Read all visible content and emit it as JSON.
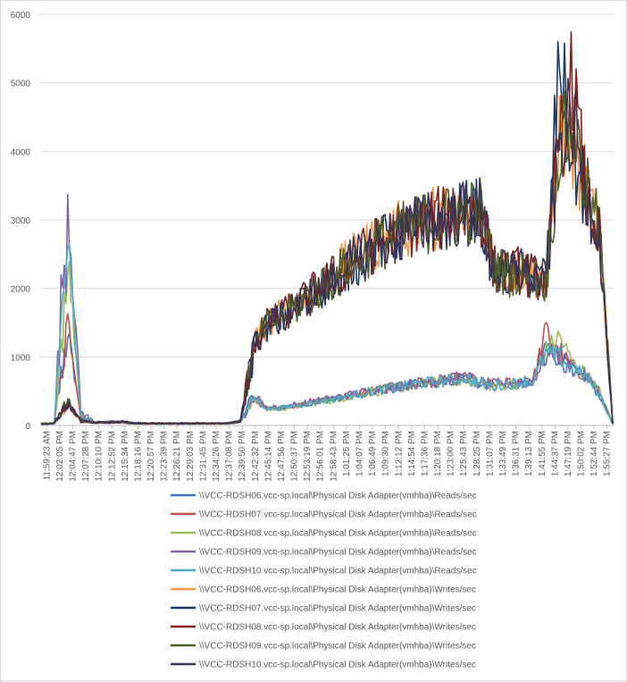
{
  "chart_data": {
    "type": "line",
    "title": "",
    "xlabel": "",
    "ylabel": "",
    "ylim": [
      0,
      6000
    ],
    "y_ticks": [
      0,
      1000,
      2000,
      3000,
      4000,
      5000,
      6000
    ],
    "grid": "horizontal",
    "legend_position": "bottom",
    "x_tick_labels": [
      "11:59:23 AM",
      "12:02:05 PM",
      "12:04:47 PM",
      "12:07:28 PM",
      "12:10:10 PM",
      "12:12:52 PM",
      "12:15:34 PM",
      "12:18:16 PM",
      "12:20:57 PM",
      "12:23:39 PM",
      "12:26:21 PM",
      "12:29:03 PM",
      "12:31:45 PM",
      "12:34:26 PM",
      "12:37:08 PM",
      "12:39:50 PM",
      "12:42:32 PM",
      "12:45:14 PM",
      "12:47:56 PM",
      "12:50:37 PM",
      "12:53:19 PM",
      "12:56:01 PM",
      "12:58:43 PM",
      "1:01:25 PM",
      "1:04:07 PM",
      "1:06:49 PM",
      "1:09:30 PM",
      "1:12:12 PM",
      "1:14:54 PM",
      "1:17:36 PM",
      "1:20:18 PM",
      "1:23:00 PM",
      "1:25:43 PM",
      "1:28:25 PM",
      "1:31:07 PM",
      "1:33:49 PM",
      "1:36:31 PM",
      "1:39:13 PM",
      "1:41:55 PM",
      "1:44:37 PM",
      "1:47:19 PM",
      "1:50:02 PM",
      "1:52:44 PM",
      "1:55:27 PM"
    ],
    "series": [
      {
        "name": "\\\\VCC-RDSH06.vcc-sp.local\\Physical Disk Adapter(vmhba)\\Reads/sec",
        "color": "#4472C4",
        "kind": "reads",
        "values": [
          20,
          30,
          1400,
          100,
          40,
          40,
          50,
          30,
          30,
          30,
          30,
          30,
          30,
          30,
          30,
          50,
          400,
          240,
          250,
          280,
          320,
          350,
          380,
          420,
          460,
          500,
          530,
          560,
          590,
          620,
          640,
          660,
          690,
          610,
          580,
          600,
          620,
          640,
          1200,
          950,
          800,
          700,
          450,
          20
        ]
      },
      {
        "name": "\\\\VCC-RDSH07.vcc-sp.local\\Physical Disk Adapter(vmhba)\\Reads/sec",
        "color": "#C0504D",
        "kind": "reads",
        "values": [
          25,
          35,
          1600,
          120,
          45,
          45,
          55,
          35,
          30,
          30,
          30,
          30,
          30,
          30,
          30,
          55,
          380,
          250,
          260,
          290,
          330,
          360,
          390,
          430,
          470,
          510,
          540,
          570,
          600,
          630,
          650,
          670,
          700,
          620,
          590,
          610,
          630,
          650,
          1400,
          1000,
          850,
          720,
          480,
          20
        ]
      },
      {
        "name": "\\\\VCC-RDSH08.vcc-sp.local\\Physical Disk Adapter(vmhba)\\Reads/sec",
        "color": "#9BBB59",
        "kind": "reads",
        "values": [
          20,
          30,
          2500,
          150,
          40,
          40,
          50,
          30,
          30,
          30,
          30,
          30,
          30,
          30,
          30,
          50,
          420,
          230,
          245,
          275,
          315,
          345,
          375,
          415,
          455,
          495,
          525,
          555,
          585,
          615,
          635,
          655,
          685,
          605,
          575,
          595,
          615,
          635,
          1100,
          1300,
          900,
          750,
          500,
          20
        ]
      },
      {
        "name": "\\\\VCC-RDSH09.vcc-sp.local\\Physical Disk Adapter(vmhba)\\Reads/sec",
        "color": "#8064A2",
        "kind": "reads",
        "values": [
          30,
          40,
          3350,
          200,
          50,
          50,
          60,
          40,
          30,
          30,
          30,
          30,
          30,
          30,
          30,
          60,
          450,
          260,
          270,
          300,
          340,
          370,
          400,
          440,
          480,
          520,
          550,
          580,
          610,
          640,
          660,
          680,
          710,
          630,
          600,
          620,
          640,
          660,
          1000,
          1100,
          820,
          730,
          470,
          20
        ]
      },
      {
        "name": "\\\\VCC-RDSH10.vcc-sp.local\\Physical Disk Adapter(vmhba)\\Reads/sec",
        "color": "#4BACC6",
        "kind": "reads",
        "values": [
          25,
          35,
          2700,
          130,
          45,
          45,
          55,
          35,
          30,
          30,
          30,
          30,
          30,
          30,
          30,
          55,
          410,
          245,
          255,
          285,
          325,
          355,
          385,
          425,
          465,
          505,
          535,
          565,
          595,
          625,
          645,
          665,
          695,
          615,
          585,
          605,
          625,
          645,
          1050,
          1000,
          830,
          710,
          460,
          20
        ]
      },
      {
        "name": "\\\\VCC-RDSH06.vcc-sp.local\\Physical Disk Adapter(vmhba)\\Writes/sec",
        "color": "#F79646",
        "kind": "writes",
        "values": [
          20,
          30,
          300,
          60,
          40,
          40,
          50,
          30,
          30,
          30,
          30,
          30,
          30,
          30,
          30,
          60,
          1200,
          1500,
          1600,
          1750,
          1900,
          2050,
          2200,
          2350,
          2500,
          2650,
          2750,
          2850,
          2950,
          3000,
          3050,
          3100,
          3150,
          3200,
          2350,
          2250,
          2300,
          2200,
          2150,
          4300,
          4000,
          3400,
          2800,
          30
        ]
      },
      {
        "name": "\\\\VCC-RDSH07.vcc-sp.local\\Physical Disk Adapter(vmhba)\\Writes/sec",
        "color": "#1F3864",
        "kind": "writes",
        "values": [
          25,
          35,
          350,
          70,
          45,
          45,
          55,
          35,
          30,
          30,
          30,
          30,
          30,
          30,
          30,
          65,
          1150,
          1450,
          1550,
          1700,
          1850,
          2000,
          2150,
          2300,
          2450,
          2600,
          2700,
          2800,
          2900,
          2950,
          3000,
          3050,
          3100,
          3150,
          2300,
          2200,
          2250,
          2150,
          2100,
          5450,
          3800,
          3300,
          2700,
          30
        ]
      },
      {
        "name": "\\\\VCC-RDSH08.vcc-sp.local\\Physical Disk Adapter(vmhba)\\Writes/sec",
        "color": "#7F1F1F",
        "kind": "writes",
        "values": [
          20,
          30,
          320,
          65,
          40,
          40,
          50,
          30,
          30,
          30,
          30,
          30,
          30,
          30,
          30,
          60,
          1180,
          1480,
          1580,
          1720,
          1870,
          2020,
          2170,
          2320,
          2470,
          2620,
          2720,
          2820,
          2920,
          2970,
          3020,
          3070,
          3120,
          3170,
          2320,
          2220,
          2270,
          2170,
          2120,
          4200,
          5100,
          3350,
          2750,
          30
        ]
      },
      {
        "name": "\\\\VCC-RDSH09.vcc-sp.local\\Physical Disk Adapter(vmhba)\\Writes/sec",
        "color": "#4F6228",
        "kind": "writes",
        "values": [
          25,
          35,
          330,
          68,
          42,
          42,
          52,
          32,
          30,
          30,
          30,
          30,
          30,
          30,
          30,
          62,
          1170,
          1470,
          1570,
          1710,
          1860,
          2010,
          2160,
          2310,
          2460,
          2610,
          2710,
          2810,
          2910,
          2960,
          3010,
          3060,
          3110,
          3160,
          2310,
          2210,
          2260,
          2160,
          2110,
          4100,
          4400,
          3450,
          2850,
          30
        ]
      },
      {
        "name": "\\\\VCC-RDSH10.vcc-sp.local\\Physical Disk Adapter(vmhba)\\Writes/sec",
        "color": "#3F3151",
        "kind": "writes",
        "values": [
          20,
          30,
          310,
          62,
          41,
          41,
          51,
          31,
          30,
          30,
          30,
          30,
          30,
          30,
          30,
          61,
          1160,
          1460,
          1560,
          1700,
          1850,
          2000,
          2150,
          2300,
          2450,
          2600,
          2700,
          2800,
          2900,
          2950,
          3000,
          3050,
          3100,
          3150,
          2300,
          2200,
          2250,
          2150,
          2100,
          4150,
          4500,
          3380,
          2780,
          30
        ]
      }
    ]
  }
}
